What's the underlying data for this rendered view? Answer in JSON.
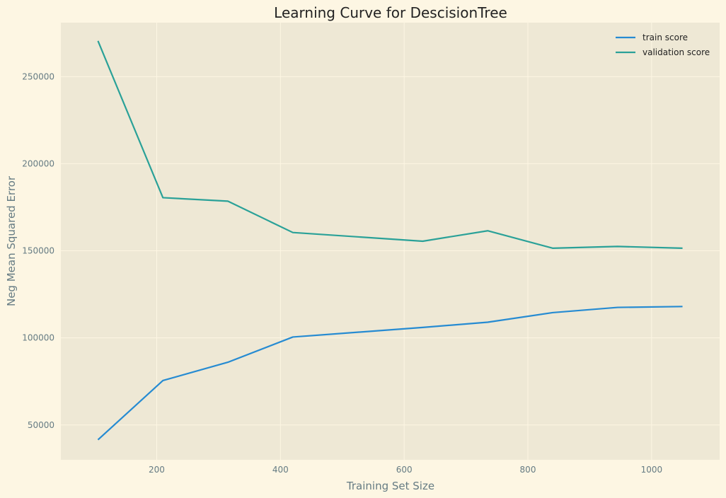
{
  "chart_data": {
    "type": "line",
    "title": "Learning Curve for DescisionTree",
    "xlabel": "Training Set Size",
    "ylabel": "Neg Mean Squared Error",
    "x": [
      105,
      210,
      315,
      420,
      630,
      735,
      840,
      945,
      1050
    ],
    "series": [
      {
        "name": "train score",
        "color": "#268bd2",
        "values": [
          41500,
          75500,
          86000,
          100500,
          106000,
          109000,
          114500,
          117500,
          118000
        ]
      },
      {
        "name": "validation score",
        "color": "#2aa198",
        "values": [
          270500,
          180500,
          178500,
          160500,
          155500,
          161500,
          151500,
          152500,
          151500
        ]
      }
    ],
    "xlim": [
      45,
      1110
    ],
    "ylim": [
      30000,
      281000
    ],
    "xticks": [
      200,
      400,
      600,
      800,
      1000
    ],
    "yticks": [
      50000,
      100000,
      150000,
      200000,
      250000
    ],
    "grid": true,
    "legend_position": "top-right",
    "colors": {
      "figure_background": "#fdf6e3",
      "plot_background": "#eee8d5",
      "grid": "#fdf6e3"
    }
  }
}
